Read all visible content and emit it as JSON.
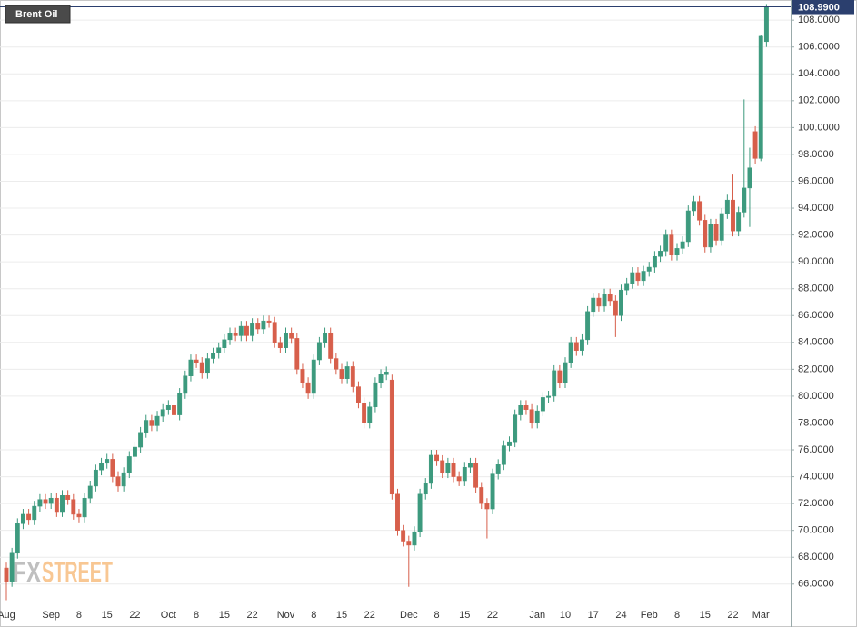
{
  "chart_data": {
    "type": "candlestick",
    "title": "Brent Oil",
    "watermark": [
      "FX",
      "STREET"
    ],
    "last_label": "108.9900",
    "up_color": "#3d9a7e",
    "down_color": "#d75f4b",
    "last_color": "#2b3f6e",
    "grid": true,
    "ylim": [
      64.7,
      109.5
    ],
    "yticks": [
      {
        "value": 66,
        "label": "66.0000"
      },
      {
        "value": 68,
        "label": "68.0000"
      },
      {
        "value": 70,
        "label": "70.0000"
      },
      {
        "value": 72,
        "label": "72.0000"
      },
      {
        "value": 74,
        "label": "74.0000"
      },
      {
        "value": 76,
        "label": "76.0000"
      },
      {
        "value": 78,
        "label": "78.0000"
      },
      {
        "value": 80,
        "label": "80.0000"
      },
      {
        "value": 82,
        "label": "82.0000"
      },
      {
        "value": 84,
        "label": "84.0000"
      },
      {
        "value": 86,
        "label": "86.0000"
      },
      {
        "value": 88,
        "label": "88.0000"
      },
      {
        "value": 90,
        "label": "90.0000"
      },
      {
        "value": 92,
        "label": "92.0000"
      },
      {
        "value": 94,
        "label": "94.0000"
      },
      {
        "value": 96,
        "label": "96.0000"
      },
      {
        "value": 98,
        "label": "98.0000"
      },
      {
        "value": 100,
        "label": "100.0000"
      },
      {
        "value": 102,
        "label": "102.0000"
      },
      {
        "value": 104,
        "label": "104.0000"
      },
      {
        "value": 106,
        "label": "106.0000"
      },
      {
        "value": 108,
        "label": "108.0000"
      }
    ],
    "categories": [
      "Aug",
      null,
      null,
      null,
      null,
      null,
      null,
      null,
      "Sep",
      null,
      null,
      null,
      null,
      "8",
      null,
      null,
      null,
      null,
      "15",
      null,
      null,
      null,
      null,
      "22",
      null,
      null,
      null,
      null,
      null,
      "Oct",
      null,
      null,
      null,
      null,
      "8",
      null,
      null,
      null,
      null,
      "15",
      null,
      null,
      null,
      null,
      "22",
      null,
      null,
      null,
      null,
      null,
      "Nov",
      null,
      null,
      null,
      null,
      "8",
      null,
      null,
      null,
      null,
      "15",
      null,
      null,
      null,
      null,
      "22",
      null,
      null,
      null,
      null,
      null,
      null,
      "Dec",
      null,
      null,
      null,
      null,
      "8",
      null,
      null,
      null,
      null,
      "15",
      null,
      null,
      null,
      null,
      "22",
      null,
      null,
      null,
      null,
      null,
      null,
      null,
      "Jan",
      null,
      null,
      null,
      null,
      "10",
      null,
      null,
      null,
      null,
      "17",
      null,
      null,
      null,
      null,
      "24",
      null,
      null,
      null,
      null,
      "Feb",
      null,
      null,
      null,
      null,
      "8",
      null,
      null,
      null,
      null,
      "15",
      null,
      null,
      null,
      null,
      "22",
      null,
      null,
      null,
      null,
      "Mar",
      null
    ],
    "open": [
      67.2,
      66.2,
      68.3,
      70.5,
      71.2,
      70.8,
      71.8,
      72.3,
      72.0,
      72.4,
      71.4,
      72.6,
      72.3,
      71.2,
      71.0,
      72.4,
      73.3,
      74.5,
      75.0,
      75.3,
      74.0,
      73.3,
      74.3,
      75.5,
      76.2,
      77.3,
      78.2,
      77.8,
      78.5,
      79.0,
      79.3,
      78.6,
      80.2,
      81.5,
      82.7,
      82.5,
      81.7,
      82.8,
      83.2,
      83.6,
      84.2,
      84.7,
      84.5,
      85.2,
      84.5,
      85.4,
      85.0,
      85.6,
      85.5,
      84.0,
      83.6,
      84.7,
      84.3,
      82.0,
      81.0,
      80.2,
      82.7,
      84.0,
      84.7,
      82.8,
      82.0,
      81.3,
      82.2,
      80.7,
      79.5,
      78.0,
      79.2,
      81.0,
      81.6,
      81.2,
      72.7,
      70.0,
      69.2,
      68.9,
      69.9,
      72.7,
      73.5,
      75.6,
      75.2,
      74.3,
      75.0,
      74.0,
      73.7,
      74.7,
      75.0,
      73.2,
      72.0,
      71.6,
      74.2,
      74.9,
      76.3,
      76.6,
      78.6,
      79.3,
      79.0,
      78.0,
      78.9,
      79.9,
      80.0,
      81.9,
      81.0,
      82.5,
      84.0,
      83.4,
      84.2,
      86.3,
      87.3,
      86.7,
      87.6,
      87.1,
      86.0,
      87.9,
      88.4,
      89.2,
      88.6,
      89.3,
      89.6,
      90.4,
      90.8,
      92.0,
      90.5,
      91.0,
      91.5,
      93.8,
      94.5,
      93.1,
      91.1,
      92.8,
      91.6,
      93.6,
      94.6,
      92.3,
      93.7,
      95.5,
      99.7,
      97.7,
      106.4
    ],
    "high": [
      67.6,
      68.7,
      70.9,
      71.6,
      71.6,
      72.2,
      72.7,
      72.7,
      72.8,
      72.8,
      73.0,
      73.0,
      72.7,
      71.6,
      72.8,
      73.7,
      74.9,
      75.4,
      75.7,
      75.7,
      74.4,
      74.7,
      75.9,
      76.6,
      77.7,
      78.6,
      78.6,
      78.9,
      79.4,
      79.7,
      79.7,
      80.6,
      81.9,
      83.1,
      83.1,
      82.9,
      83.2,
      83.6,
      84.0,
      84.6,
      85.1,
      85.1,
      85.6,
      85.6,
      85.8,
      85.8,
      86.0,
      86.0,
      85.9,
      84.4,
      85.1,
      85.1,
      84.7,
      82.4,
      81.4,
      83.1,
      84.4,
      85.1,
      85.1,
      83.2,
      82.4,
      82.6,
      82.6,
      81.1,
      79.9,
      79.6,
      81.4,
      82.0,
      82.2,
      81.6,
      73.1,
      70.4,
      69.6,
      70.3,
      73.1,
      73.9,
      76.0,
      76.0,
      75.6,
      75.4,
      75.4,
      74.4,
      75.1,
      75.4,
      75.4,
      73.6,
      72.4,
      74.6,
      75.3,
      76.7,
      77.0,
      79.0,
      79.7,
      79.7,
      79.4,
      79.3,
      80.3,
      80.4,
      82.3,
      82.3,
      82.9,
      84.4,
      84.4,
      84.6,
      86.7,
      87.7,
      87.7,
      88.0,
      88.0,
      87.5,
      88.3,
      88.8,
      89.6,
      89.6,
      89.7,
      90.0,
      90.8,
      91.2,
      92.4,
      92.4,
      91.4,
      91.9,
      94.2,
      94.9,
      94.9,
      93.5,
      93.2,
      93.2,
      94.0,
      95.0,
      96.5,
      94.1,
      102.1,
      98.5,
      100.1,
      106.9,
      109.2
    ],
    "low": [
      64.8,
      65.8,
      67.9,
      70.1,
      70.4,
      70.4,
      71.4,
      71.6,
      71.6,
      71.0,
      71.0,
      71.9,
      70.8,
      70.6,
      70.6,
      72.0,
      72.9,
      74.1,
      74.6,
      73.6,
      72.9,
      72.9,
      73.9,
      75.1,
      75.8,
      76.9,
      77.4,
      77.4,
      78.1,
      78.6,
      78.2,
      78.2,
      79.8,
      81.1,
      82.1,
      81.3,
      81.3,
      82.4,
      82.8,
      83.2,
      83.8,
      84.1,
      84.1,
      84.1,
      84.1,
      84.6,
      84.6,
      85.1,
      83.6,
      83.2,
      83.2,
      83.9,
      81.6,
      80.6,
      79.8,
      79.8,
      82.3,
      83.6,
      82.4,
      81.6,
      80.9,
      80.9,
      80.3,
      79.1,
      77.6,
      77.6,
      78.8,
      80.6,
      81.2,
      72.3,
      69.6,
      68.8,
      65.8,
      68.5,
      69.5,
      72.3,
      73.1,
      74.8,
      73.9,
      73.9,
      73.6,
      73.3,
      73.3,
      74.3,
      72.8,
      71.6,
      69.4,
      71.2,
      73.8,
      74.5,
      75.9,
      76.2,
      78.2,
      78.6,
      77.6,
      77.6,
      78.5,
      79.5,
      79.6,
      80.6,
      80.6,
      82.1,
      83.0,
      83.0,
      83.8,
      85.9,
      86.3,
      86.3,
      86.7,
      84.4,
      85.6,
      87.5,
      88.0,
      88.2,
      88.2,
      88.9,
      89.2,
      90.0,
      90.4,
      90.1,
      90.1,
      90.6,
      91.1,
      93.4,
      92.7,
      90.7,
      90.7,
      91.2,
      91.2,
      93.2,
      91.9,
      91.9,
      93.3,
      92.6,
      97.3,
      97.5,
      106.0
    ],
    "close": [
      66.2,
      68.3,
      70.5,
      71.2,
      70.8,
      71.8,
      72.3,
      72.0,
      72.4,
      71.4,
      72.6,
      72.3,
      71.2,
      71.0,
      72.4,
      73.3,
      74.5,
      75.0,
      75.3,
      74.0,
      73.3,
      74.3,
      75.5,
      76.2,
      77.3,
      78.2,
      77.8,
      78.5,
      79.0,
      79.3,
      78.6,
      80.2,
      81.5,
      82.7,
      82.5,
      81.7,
      82.8,
      83.2,
      83.6,
      84.2,
      84.7,
      84.5,
      85.2,
      84.5,
      85.4,
      85.0,
      85.6,
      85.5,
      84.0,
      83.6,
      84.7,
      84.3,
      82.0,
      81.0,
      80.2,
      82.7,
      84.0,
      84.7,
      82.8,
      82.0,
      81.3,
      82.2,
      80.7,
      79.5,
      78.0,
      79.2,
      81.0,
      81.6,
      81.8,
      72.7,
      70.0,
      69.2,
      68.9,
      69.9,
      72.7,
      73.5,
      75.6,
      75.2,
      74.3,
      75.0,
      74.0,
      73.7,
      74.7,
      75.0,
      73.2,
      72.0,
      71.6,
      74.2,
      74.9,
      76.3,
      76.6,
      78.6,
      79.3,
      79.0,
      78.0,
      78.9,
      79.9,
      80.0,
      81.9,
      81.0,
      82.5,
      84.0,
      83.4,
      84.2,
      86.3,
      87.3,
      86.7,
      87.6,
      87.1,
      86.0,
      87.9,
      88.4,
      89.2,
      88.6,
      89.3,
      89.6,
      90.4,
      90.8,
      92.0,
      90.5,
      91.0,
      91.5,
      93.8,
      94.5,
      93.1,
      91.1,
      92.8,
      91.6,
      93.6,
      94.6,
      92.3,
      93.7,
      95.5,
      97.0,
      97.7,
      106.8,
      108.99
    ]
  }
}
